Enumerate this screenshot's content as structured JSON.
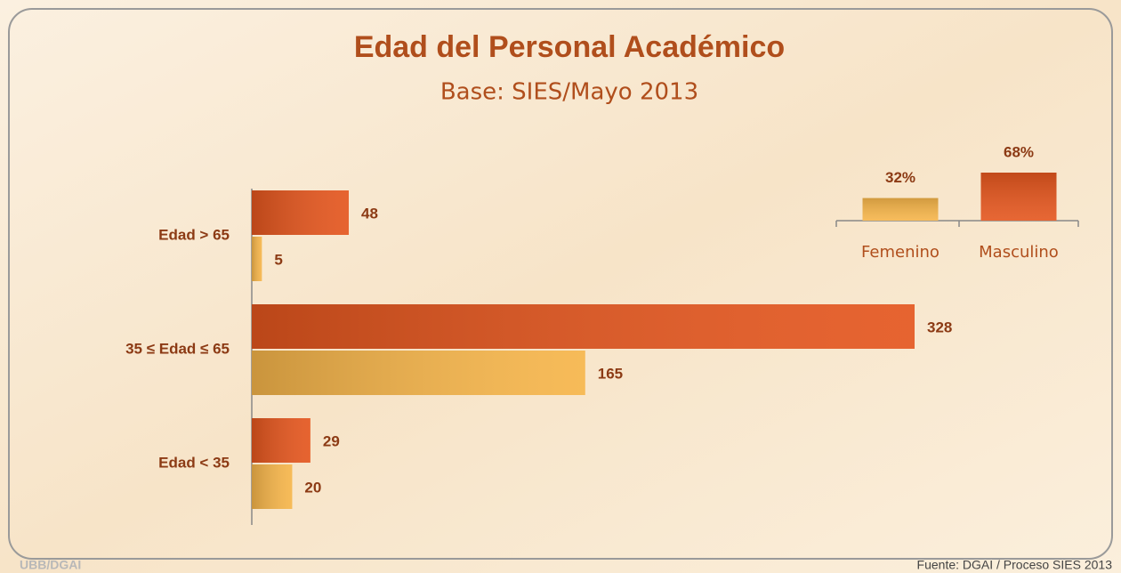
{
  "title": "Edad del Personal Académico",
  "subtitle": "Base: SIES/Mayo 2013",
  "logo": "UBB/DGAI",
  "source": "Fuente: DGAI / Proceso SIES 2013",
  "chart_data": [
    {
      "type": "hbar",
      "categories": [
        "Edad > 65",
        "35 ≤ Edad ≤ 65",
        "Edad < 35"
      ],
      "series": [
        {
          "color": "#e4561e",
          "values": [
            48,
            328,
            29
          ]
        },
        {
          "color": "#f6b54a",
          "values": [
            5,
            165,
            20
          ]
        }
      ]
    },
    {
      "type": "bar",
      "categories": [
        "Femenino",
        "Masculino"
      ],
      "values": [
        32,
        68
      ],
      "value_labels": [
        "32%",
        "68%"
      ],
      "colors": [
        "#f6b54a",
        "#e4561e"
      ]
    }
  ]
}
